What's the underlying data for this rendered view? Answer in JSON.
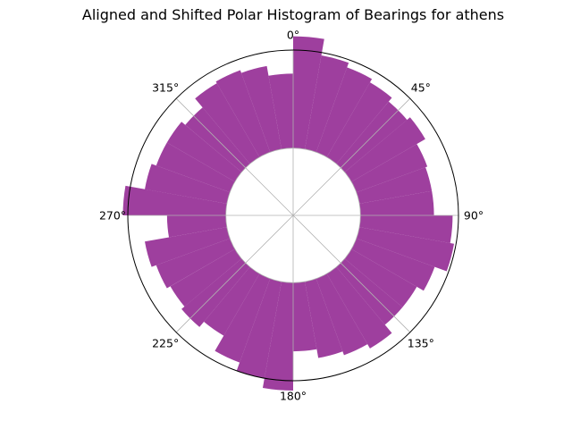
{
  "chart_data": {
    "type": "polar-histogram",
    "title": "Aligned and Shifted Polar Histogram of Bearings for athens",
    "theta_direction": "clockwise",
    "theta_zero": "north",
    "theta_tick_labels": [
      "0°",
      "45°",
      "90°",
      "135°",
      "180°",
      "225°",
      "270°",
      "315°"
    ],
    "theta_tick_degrees": [
      0,
      45,
      90,
      135,
      180,
      225,
      270,
      315
    ],
    "bin_width_deg": 10,
    "bin_start_deg": [
      0,
      10,
      20,
      30,
      40,
      50,
      60,
      70,
      80,
      90,
      100,
      110,
      120,
      130,
      140,
      150,
      160,
      170,
      180,
      190,
      200,
      210,
      220,
      230,
      240,
      250,
      260,
      270,
      280,
      290,
      300,
      310,
      320,
      330,
      340,
      350
    ],
    "values": [
      1.14,
      0.97,
      0.92,
      0.88,
      0.83,
      0.87,
      0.77,
      0.75,
      0.75,
      0.94,
      0.98,
      0.85,
      0.77,
      0.77,
      0.88,
      0.83,
      0.79,
      0.7,
      1.1,
      1.0,
      0.91,
      0.73,
      0.8,
      0.76,
      0.8,
      0.85,
      0.6,
      1.05,
      0.85,
      0.8,
      0.8,
      0.75,
      0.87,
      0.89,
      0.86,
      0.76
    ],
    "inner_radius_fraction": 0.407,
    "bar_color": "#8B1A8B",
    "bar_alpha": 0.84,
    "grid": true,
    "grid_color": "#b0b0b0",
    "radial_tick_labels": "hidden"
  }
}
